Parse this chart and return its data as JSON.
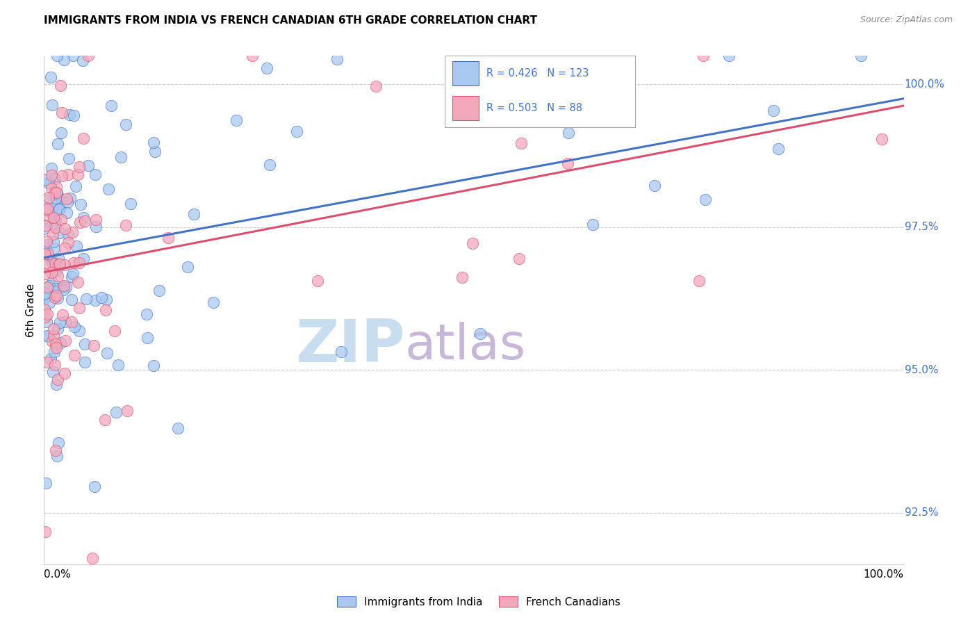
{
  "title": "IMMIGRANTS FROM INDIA VS FRENCH CANADIAN 6TH GRADE CORRELATION CHART",
  "source": "Source: ZipAtlas.com",
  "ylabel": "6th Grade",
  "ytick_labels": [
    "92.5%",
    "95.0%",
    "97.5%",
    "100.0%"
  ],
  "ytick_values": [
    0.925,
    0.95,
    0.975,
    1.0
  ],
  "xmin": 0.0,
  "xmax": 1.0,
  "ymin": 0.916,
  "ymax": 1.005,
  "legend_R_india": "0.426",
  "legend_N_india": "123",
  "legend_R_french": "0.503",
  "legend_N_french": "88",
  "color_india": "#A8C8F0",
  "color_french": "#F4A8BC",
  "color_india_dark": "#4472C4",
  "color_french_dark": "#D94F6E",
  "color_legend_text_blue": "#4472C4",
  "color_ytick": "#4472C4",
  "watermark_zip": "#C8DDF0",
  "watermark_atlas": "#C8B8D8",
  "background": "#FFFFFF",
  "grid_color": "#CCCCCC",
  "india_line_start_y": 0.9695,
  "india_line_end_y": 1.001,
  "french_line_start_y": 0.966,
  "french_line_end_y": 1.002
}
